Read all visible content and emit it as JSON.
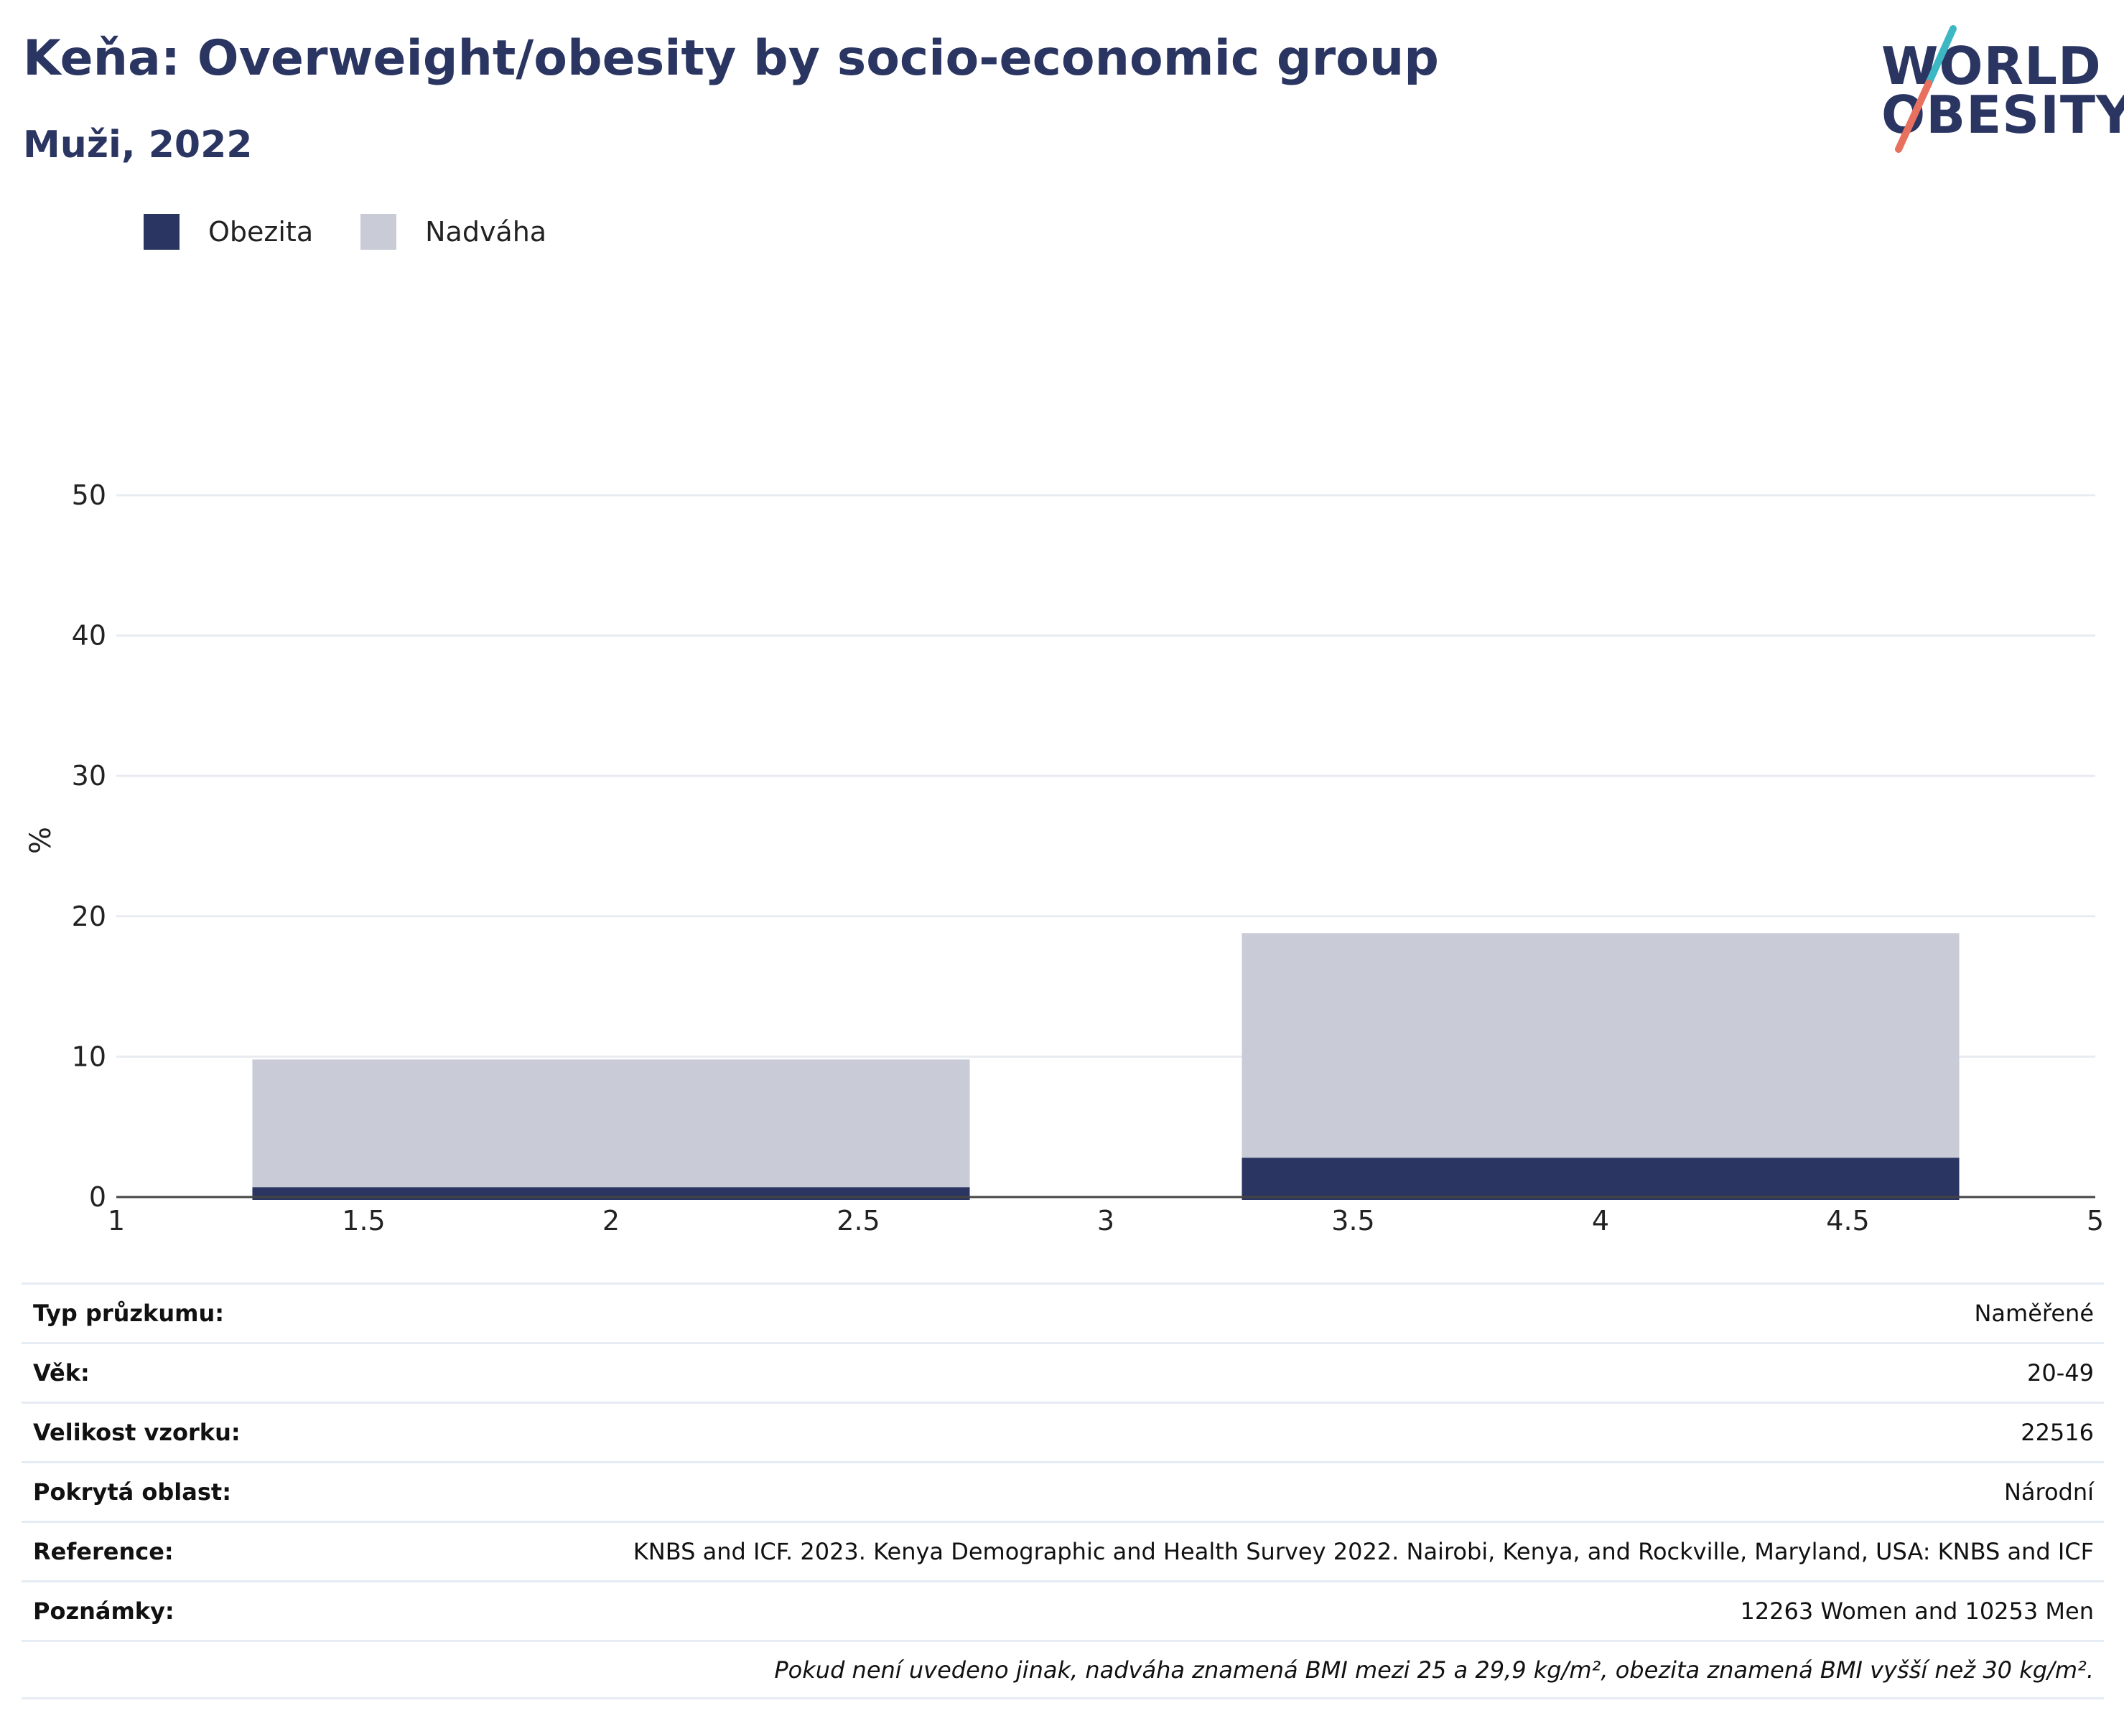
{
  "header": {
    "title": "Keňa: Overweight/obesity by socio-economic group",
    "subtitle": "Muži, 2022"
  },
  "logo": {
    "line1": "WORLD",
    "line2": "OBESITY",
    "colors": {
      "text": "#2a3561",
      "slash_top": "#3bb8c3",
      "slash_bottom": "#e8705f"
    }
  },
  "legend": [
    {
      "label": "Obezita",
      "color": "#2a3561"
    },
    {
      "label": "Nadváha",
      "color": "#c9ccd7"
    }
  ],
  "chart_data": {
    "type": "bar",
    "stacked": true,
    "ylabel": "%",
    "xlim": [
      1,
      5
    ],
    "ylim": [
      0,
      50
    ],
    "x_ticks": [
      "1",
      "1.5",
      "2",
      "2.5",
      "3",
      "3.5",
      "4",
      "4.5",
      "5"
    ],
    "y_ticks": [
      "0",
      "10",
      "20",
      "30",
      "40",
      "50"
    ],
    "grid": true,
    "legend_position": "top-left",
    "bars": [
      {
        "x": 2,
        "width": 1.45,
        "obezita": 0.7,
        "nadvaha": 9.1
      },
      {
        "x": 4,
        "width": 1.45,
        "obezita": 2.8,
        "nadvaha": 16.0
      }
    ],
    "series": [
      {
        "name": "Obezita",
        "color": "#2a3561",
        "values": [
          0.7,
          2.8
        ]
      },
      {
        "name": "Nadváha",
        "color": "#c9ccd7",
        "values": [
          9.1,
          16.0
        ]
      }
    ]
  },
  "meta": {
    "rows": [
      {
        "label": "Typ průzkumu:",
        "value": "Naměřené"
      },
      {
        "label": "Věk:",
        "value": "20-49"
      },
      {
        "label": "Velikost vzorku:",
        "value": "22516"
      },
      {
        "label": "Pokrytá oblast:",
        "value": "Národní"
      },
      {
        "label": "Reference:",
        "value": "KNBS and ICF. 2023. Kenya Demographic and Health Survey 2022. Nairobi, Kenya, and Rockville, Maryland, USA: KNBS and ICF"
      },
      {
        "label": "Poznámky:",
        "value": "12263 Women and 10253 Men"
      }
    ],
    "note": "Pokud není uvedeno jinak, nadváha znamená BMI mezi 25 a 29,9 kg/m², obezita znamená BMI vyšší než 30 kg/m²."
  }
}
